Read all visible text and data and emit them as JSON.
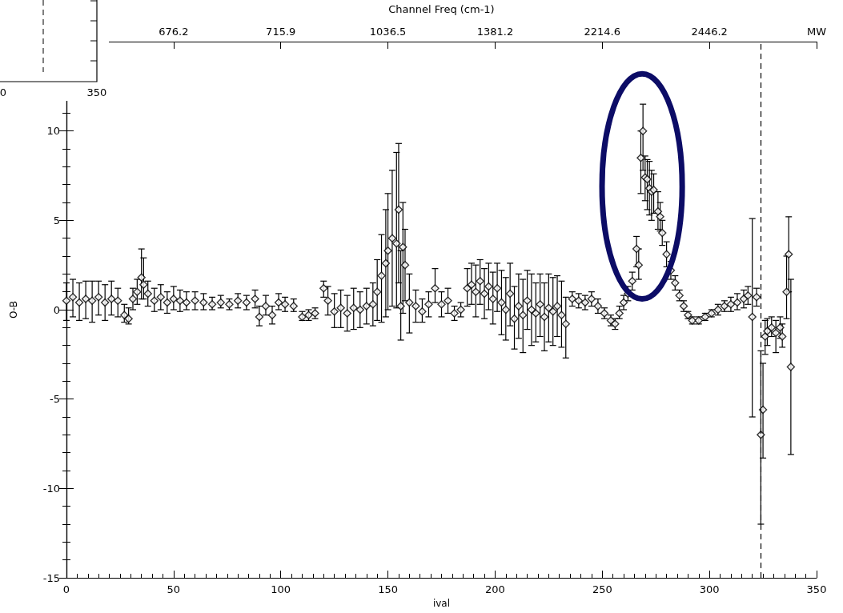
{
  "chart_data": [
    {
      "type": "scatter",
      "xlabel": "ival",
      "ylabel": "O-B",
      "x2label": "Channel Freq (cm-1)",
      "marker": "diamond",
      "grid": false,
      "xlim": [
        0,
        350
      ],
      "xticks": [
        0,
        50,
        100,
        150,
        200,
        250,
        300,
        350
      ],
      "annotations": [
        "676.2",
        "715.9",
        "1036.5",
        "1381.2",
        "2214.6",
        "2446.2",
        "MW"
      ],
      "ylim": [
        -15,
        15
      ],
      "yticks": [
        -15,
        -10,
        -5,
        0,
        5,
        10,
        {
          "value": 15,
          "label": null
        }
      ],
      "ref_lines": [
        {
          "axis": "x",
          "value": 324,
          "line_style": "dashed",
          "color": "#000000"
        }
      ],
      "series": [
        {
          "color": "#000000",
          "x": [
            0,
            3,
            6,
            9,
            12,
            15,
            18,
            21,
            24,
            27,
            29,
            31,
            33,
            35,
            36,
            38,
            41,
            44,
            47,
            50,
            53,
            56,
            60,
            64,
            68,
            72,
            76,
            80,
            84,
            88,
            90,
            93,
            96,
            99,
            102,
            106,
            110,
            113,
            116,
            120,
            122,
            125,
            128,
            131,
            134,
            137,
            140,
            143,
            145,
            147,
            149,
            150,
            152,
            154,
            155,
            156,
            157,
            158,
            160,
            163,
            166,
            169,
            172,
            175,
            178,
            181,
            184,
            187,
            189,
            191,
            193,
            195,
            197,
            199,
            201,
            203,
            205,
            207,
            209,
            211,
            213,
            215,
            217,
            219,
            221,
            223,
            225,
            227,
            229,
            231,
            233,
            236,
            239,
            242,
            245,
            248,
            251,
            254,
            256,
            258,
            260,
            262,
            264,
            266,
            267,
            268,
            269,
            270,
            271,
            272,
            273,
            274,
            276,
            277,
            278,
            280,
            282,
            284,
            286,
            288,
            290,
            292,
            295,
            298,
            301,
            304,
            307,
            310,
            313,
            316,
            318,
            320,
            322,
            324,
            325,
            326,
            327,
            329,
            331,
            333,
            334,
            336,
            337,
            338
          ],
          "values": [
            0.5,
            0.7,
            0.4,
            0.6,
            0.5,
            0.7,
            0.4,
            0.6,
            0.5,
            -0.3,
            -0.5,
            0.6,
            1.0,
            1.8,
            1.4,
            0.9,
            0.5,
            0.7,
            0.4,
            0.6,
            0.5,
            0.4,
            0.5,
            0.4,
            0.3,
            0.4,
            0.3,
            0.5,
            0.4,
            0.6,
            -0.4,
            0.2,
            -0.3,
            0.4,
            0.3,
            0.2,
            -0.4,
            -0.3,
            -0.2,
            1.2,
            0.5,
            -0.1,
            0.1,
            -0.2,
            0.1,
            0.0,
            0.2,
            0.3,
            1.0,
            1.9,
            2.6,
            3.3,
            4.0,
            3.7,
            5.6,
            0.2,
            3.5,
            2.5,
            0.4,
            0.2,
            -0.1,
            0.3,
            1.2,
            0.3,
            0.5,
            -0.2,
            0.0,
            1.2,
            1.4,
            1.0,
            1.6,
            0.9,
            1.3,
            0.6,
            1.2,
            0.4,
            0.0,
            0.9,
            -0.5,
            0.2,
            -0.3,
            0.5,
            0.0,
            -0.2,
            0.3,
            -0.4,
            0.1,
            -0.1,
            0.2,
            -0.3,
            -0.8,
            0.6,
            0.5,
            0.4,
            0.6,
            0.2,
            -0.2,
            -0.6,
            -0.8,
            -0.2,
            0.4,
            0.9,
            1.6,
            3.4,
            2.5,
            8.5,
            10.0,
            7.4,
            7.3,
            6.8,
            6.6,
            6.7,
            5.5,
            5.2,
            4.3,
            3.1,
            2.2,
            1.5,
            0.8,
            0.2,
            -0.3,
            -0.6,
            -0.6,
            -0.4,
            -0.2,
            0.0,
            0.2,
            0.3,
            0.4,
            0.6,
            0.8,
            -0.4,
            0.7,
            -7.0,
            -5.6,
            -1.5,
            -1.2,
            -1.0,
            -1.3,
            -1.0,
            -1.5,
            1.0,
            3.1,
            -3.2
          ],
          "errors": [
            [
              -0.6,
              1.5
            ],
            [
              -0.4,
              1.7
            ],
            [
              -0.6,
              1.5
            ],
            [
              -0.5,
              1.6
            ],
            [
              -0.7,
              1.6
            ],
            [
              -0.3,
              1.6
            ],
            [
              -0.6,
              1.4
            ],
            [
              -0.3,
              1.6
            ],
            [
              -0.4,
              1.2
            ],
            [
              -0.7,
              0.3
            ],
            [
              -0.8,
              0.1
            ],
            [
              0.0,
              1.2
            ],
            [
              0.3,
              1.7
            ],
            [
              0.6,
              3.4
            ],
            [
              0.6,
              2.9
            ],
            [
              0.2,
              1.6
            ],
            [
              -0.1,
              1.2
            ],
            [
              0.0,
              1.4
            ],
            [
              -0.2,
              1.0
            ],
            [
              0.0,
              1.3
            ],
            [
              -0.1,
              1.1
            ],
            [
              0.0,
              1.0
            ],
            [
              0.0,
              1.0
            ],
            [
              0.0,
              0.9
            ],
            [
              0.0,
              0.7
            ],
            [
              0.1,
              0.8
            ],
            [
              0.0,
              0.6
            ],
            [
              0.1,
              0.9
            ],
            [
              0.0,
              0.8
            ],
            [
              0.1,
              1.1
            ],
            [
              -0.9,
              0.2
            ],
            [
              -0.3,
              0.8
            ],
            [
              -0.8,
              0.2
            ],
            [
              0.0,
              0.9
            ],
            [
              -0.1,
              0.7
            ],
            [
              -0.1,
              0.6
            ],
            [
              -0.6,
              -0.1
            ],
            [
              -0.6,
              0.0
            ],
            [
              -0.5,
              0.1
            ],
            [
              0.7,
              1.6
            ],
            [
              -0.3,
              1.3
            ],
            [
              -1.0,
              0.9
            ],
            [
              -1.0,
              1.1
            ],
            [
              -1.2,
              0.8
            ],
            [
              -1.1,
              1.2
            ],
            [
              -1.0,
              1.0
            ],
            [
              -0.8,
              1.2
            ],
            [
              -0.9,
              1.5
            ],
            [
              -0.6,
              2.8
            ],
            [
              -0.7,
              4.2
            ],
            [
              -0.4,
              5.6
            ],
            [
              0.0,
              6.5
            ],
            [
              0.2,
              7.8
            ],
            [
              0.1,
              8.8
            ],
            [
              1.5,
              9.3
            ],
            [
              -1.7,
              3.3
            ],
            [
              -0.2,
              6.0
            ],
            [
              0.5,
              4.5
            ],
            [
              -1.3,
              2.0
            ],
            [
              -0.7,
              1.1
            ],
            [
              -0.7,
              0.6
            ],
            [
              -0.4,
              1.0
            ],
            [
              0.4,
              2.3
            ],
            [
              -0.4,
              1.0
            ],
            [
              -0.2,
              1.2
            ],
            [
              -0.6,
              0.2
            ],
            [
              -0.4,
              0.4
            ],
            [
              0.2,
              2.3
            ],
            [
              0.3,
              2.6
            ],
            [
              -0.4,
              2.5
            ],
            [
              0.3,
              2.8
            ],
            [
              -0.5,
              2.3
            ],
            [
              0.0,
              2.6
            ],
            [
              -0.8,
              2.1
            ],
            [
              -0.1,
              2.6
            ],
            [
              -1.4,
              2.2
            ],
            [
              -1.7,
              1.8
            ],
            [
              -0.9,
              2.6
            ],
            [
              -2.2,
              1.3
            ],
            [
              -1.6,
              2.0
            ],
            [
              -2.4,
              1.7
            ],
            [
              -1.1,
              2.2
            ],
            [
              -2.0,
              2.0
            ],
            [
              -1.8,
              1.5
            ],
            [
              -1.5,
              2.0
            ],
            [
              -2.3,
              1.5
            ],
            [
              -1.8,
              2.0
            ],
            [
              -2.0,
              1.8
            ],
            [
              -1.5,
              1.9
            ],
            [
              -2.1,
              1.6
            ],
            [
              -2.7,
              0.7
            ],
            [
              0.2,
              1.0
            ],
            [
              0.1,
              0.9
            ],
            [
              0.0,
              0.8
            ],
            [
              0.2,
              1.0
            ],
            [
              -0.2,
              0.6
            ],
            [
              -0.5,
              0.1
            ],
            [
              -0.9,
              -0.3
            ],
            [
              -1.1,
              -0.5
            ],
            [
              -0.5,
              0.2
            ],
            [
              0.0,
              0.8
            ],
            [
              0.5,
              1.3
            ],
            [
              1.1,
              2.1
            ],
            [
              2.4,
              4.1
            ],
            [
              1.7,
              3.4
            ],
            [
              6.5,
              10.0
            ],
            [
              7.8,
              11.5
            ],
            [
              6.1,
              8.6
            ],
            [
              5.6,
              8.4
            ],
            [
              5.3,
              8.3
            ],
            [
              5.0,
              7.8
            ],
            [
              5.4,
              7.6
            ],
            [
              4.5,
              6.6
            ],
            [
              4.4,
              6.0
            ],
            [
              3.6,
              5.0
            ],
            [
              2.4,
              3.8
            ],
            [
              1.7,
              2.7
            ],
            [
              1.1,
              1.9
            ],
            [
              0.5,
              1.1
            ],
            [
              -0.1,
              0.5
            ],
            [
              -0.5,
              -0.1
            ],
            [
              -0.8,
              -0.4
            ],
            [
              -0.8,
              -0.4
            ],
            [
              -0.6,
              -0.2
            ],
            [
              -0.4,
              0.0
            ],
            [
              -0.3,
              0.3
            ],
            [
              -0.1,
              0.5
            ],
            [
              -0.1,
              0.7
            ],
            [
              0.0,
              0.9
            ],
            [
              0.1,
              1.1
            ],
            [
              0.3,
              1.3
            ],
            [
              -6.0,
              5.1
            ],
            [
              0.2,
              1.2
            ],
            [
              -12.0,
              -2.3
            ],
            [
              -8.3,
              -3.0
            ],
            [
              -2.5,
              -0.6
            ],
            [
              -2.0,
              -0.5
            ],
            [
              -1.5,
              -0.4
            ],
            [
              -2.4,
              -0.6
            ],
            [
              -1.6,
              -0.4
            ],
            [
              -2.1,
              -0.8
            ],
            [
              -0.5,
              3.0
            ],
            [
              1.0,
              5.2
            ],
            [
              -8.1,
              1.7
            ]
          ]
        }
      ]
    },
    {
      "type": "other",
      "annotations": [
        "0",
        "350"
      ]
    }
  ]
}
